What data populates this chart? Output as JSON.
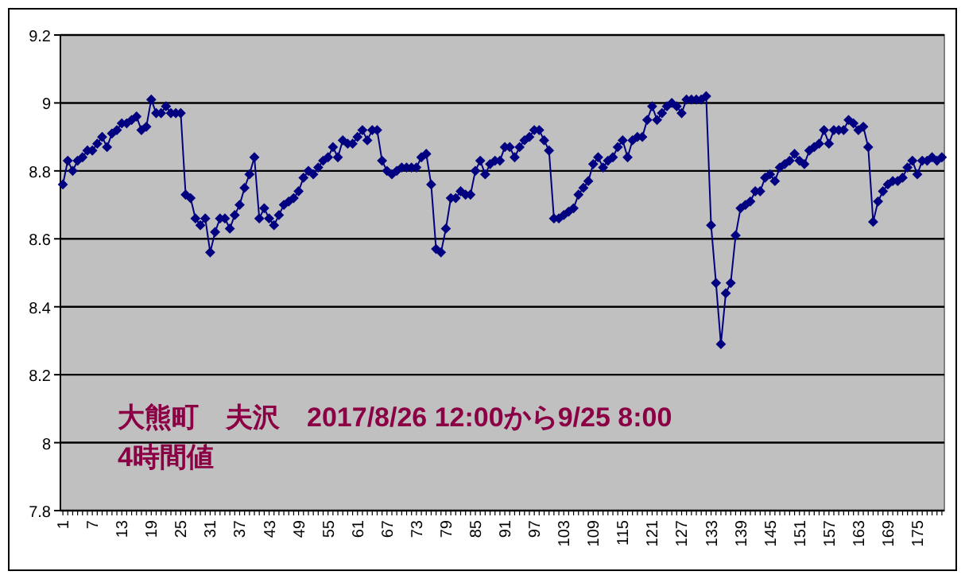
{
  "chart_data": {
    "type": "line",
    "categories": [
      "1",
      null,
      null,
      null,
      null,
      null,
      "7",
      null,
      null,
      null,
      null,
      null,
      "13",
      null,
      null,
      null,
      null,
      null,
      "19",
      null,
      null,
      null,
      null,
      null,
      "25",
      null,
      null,
      null,
      null,
      null,
      "31",
      null,
      null,
      null,
      null,
      null,
      "37",
      null,
      null,
      null,
      null,
      null,
      "43",
      null,
      null,
      null,
      null,
      null,
      "49",
      null,
      null,
      null,
      null,
      null,
      "55",
      null,
      null,
      null,
      null,
      null,
      "61",
      null,
      null,
      null,
      null,
      null,
      "67",
      null,
      null,
      null,
      null,
      null,
      "73",
      null,
      null,
      null,
      null,
      null,
      "79",
      null,
      null,
      null,
      null,
      null,
      "85",
      null,
      null,
      null,
      null,
      null,
      "91",
      null,
      null,
      null,
      null,
      null,
      "97",
      null,
      null,
      null,
      null,
      null,
      "103",
      null,
      null,
      null,
      null,
      null,
      "109",
      null,
      null,
      null,
      null,
      null,
      "115",
      null,
      null,
      null,
      null,
      null,
      "121",
      null,
      null,
      null,
      null,
      null,
      "127",
      null,
      null,
      null,
      null,
      null,
      "133",
      null,
      null,
      null,
      null,
      null,
      "139",
      null,
      null,
      null,
      null,
      null,
      "145",
      null,
      null,
      null,
      null,
      null,
      "151",
      null,
      null,
      null,
      null,
      null,
      "157",
      null,
      null,
      null,
      null,
      null,
      "163",
      null,
      null,
      null,
      null,
      null,
      "169",
      null,
      null,
      null,
      null,
      null,
      "175",
      null,
      null,
      null,
      null,
      null
    ],
    "series": [
      {
        "color": "#000080",
        "values": [
          8.76,
          8.83,
          8.8,
          8.83,
          8.84,
          8.86,
          8.86,
          8.88,
          8.9,
          8.87,
          8.91,
          8.92,
          8.94,
          8.94,
          8.95,
          8.96,
          8.92,
          8.93,
          9.01,
          8.97,
          8.97,
          8.99,
          8.97,
          8.97,
          8.97,
          8.73,
          8.72,
          8.66,
          8.64,
          8.66,
          8.56,
          8.62,
          8.66,
          8.66,
          8.63,
          8.67,
          8.7,
          8.75,
          8.79,
          8.84,
          8.66,
          8.69,
          8.66,
          8.64,
          8.67,
          8.7,
          8.71,
          8.72,
          8.74,
          8.78,
          8.8,
          8.79,
          8.81,
          8.83,
          8.84,
          8.87,
          8.84,
          8.89,
          8.88,
          8.88,
          8.9,
          8.92,
          8.89,
          8.92,
          8.92,
          8.83,
          8.8,
          8.79,
          8.8,
          8.81,
          8.81,
          8.81,
          8.81,
          8.84,
          8.85,
          8.76,
          8.57,
          8.56,
          8.63,
          8.72,
          8.72,
          8.74,
          8.73,
          8.73,
          8.8,
          8.83,
          8.79,
          8.82,
          8.83,
          8.83,
          8.87,
          8.87,
          8.84,
          8.87,
          8.89,
          8.9,
          8.92,
          8.92,
          8.89,
          8.86,
          8.66,
          8.66,
          8.67,
          8.68,
          8.69,
          8.73,
          8.75,
          8.77,
          8.82,
          8.84,
          8.81,
          8.83,
          8.84,
          8.87,
          8.89,
          8.84,
          8.89,
          8.9,
          8.9,
          8.95,
          8.99,
          8.95,
          8.97,
          8.99,
          9.0,
          8.99,
          8.97,
          9.01,
          9.01,
          9.01,
          9.01,
          9.02,
          8.64,
          8.47,
          8.29,
          8.44,
          8.47,
          8.61,
          8.69,
          8.7,
          8.71,
          8.74,
          8.74,
          8.78,
          8.79,
          8.77,
          8.81,
          8.82,
          8.83,
          8.85,
          8.83,
          8.82,
          8.86,
          8.87,
          8.88,
          8.92,
          8.88,
          8.92,
          8.92,
          8.92,
          8.95,
          8.94,
          8.92,
          8.93,
          8.87,
          8.65,
          8.71,
          8.74,
          8.76,
          8.77,
          8.77,
          8.78,
          8.81,
          8.83,
          8.79,
          8.83,
          8.83,
          8.84,
          8.83,
          8.84
        ]
      }
    ],
    "ylim": [
      7.8,
      9.2
    ],
    "yticks": [
      7.8,
      8,
      8.2,
      8.4,
      8.6,
      8.8,
      9,
      9.2
    ],
    "grid": "y",
    "marker": "diamond",
    "line_style": "solid",
    "annotations": [
      "大熊町　夫沢　2017/8/26 12:00から9/25 8:00",
      "4時間値"
    ]
  }
}
